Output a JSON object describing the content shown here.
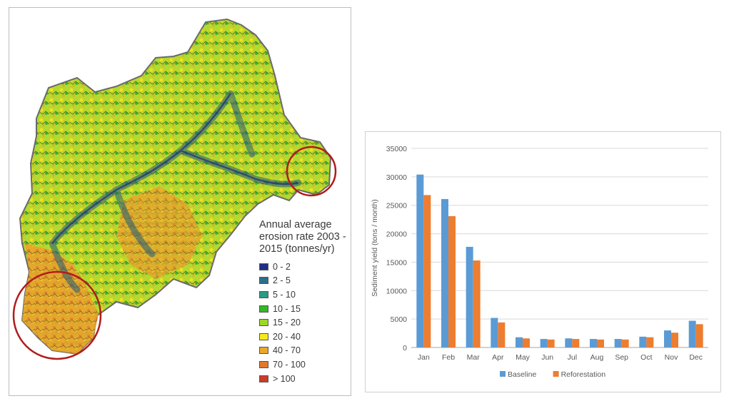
{
  "map": {
    "legend_title_lines": [
      "Annual average",
      "erosion rate 2003 -",
      "2015 (tonnes/yr)"
    ],
    "legend_items": [
      {
        "label": "0 - 2",
        "color": "#1f2d86"
      },
      {
        "label": "2 - 5",
        "color": "#2c6f8a"
      },
      {
        "label": "5 - 10",
        "color": "#2a9a82"
      },
      {
        "label": "10 - 15",
        "color": "#34b826"
      },
      {
        "label": "15 - 20",
        "color": "#9fd62a"
      },
      {
        "label": "20 - 40",
        "color": "#f6ea1e"
      },
      {
        "label": "40 - 70",
        "color": "#eaa82a"
      },
      {
        "label": "70 - 100",
        "color": "#e07a2e"
      },
      {
        "label": "> 100",
        "color": "#cc3b28"
      }
    ],
    "highlight_color": "#b01c1c"
  },
  "chart_data": {
    "type": "bar",
    "categories": [
      "Jan",
      "Feb",
      "Mar",
      "Apr",
      "May",
      "Jun",
      "Jul",
      "Aug",
      "Sep",
      "Oct",
      "Nov",
      "Dec"
    ],
    "series": [
      {
        "name": "Baseline",
        "color": "#5b9bd5",
        "values": [
          30400,
          26100,
          17700,
          5200,
          1800,
          1500,
          1600,
          1500,
          1500,
          1900,
          3000,
          4700
        ]
      },
      {
        "name": "Reforestation",
        "color": "#ed7d31",
        "values": [
          26800,
          23100,
          15300,
          4400,
          1600,
          1400,
          1500,
          1400,
          1400,
          1800,
          2600,
          4100
        ]
      }
    ],
    "ylabel": "Sediment yield (tons / month)",
    "ylim": [
      0,
      35000
    ],
    "yticks": [
      0,
      5000,
      10000,
      15000,
      20000,
      25000,
      30000,
      35000
    ],
    "grid": true,
    "legend_position": "bottom"
  }
}
